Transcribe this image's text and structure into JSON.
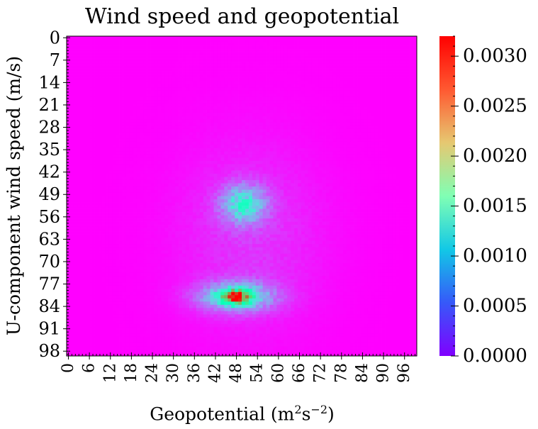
{
  "chart_data": {
    "type": "heatmap",
    "title": "Wind speed and geopotential",
    "xlabel": "Geopotential (m²s⁻²)",
    "ylabel": "U-component wind speed (m/s)",
    "x_ticks": [
      "0",
      "6",
      "12",
      "18",
      "24",
      "30",
      "36",
      "42",
      "48",
      "54",
      "60",
      "66",
      "72",
      "78",
      "84",
      "90",
      "96"
    ],
    "y_ticks": [
      "0",
      "7",
      "14",
      "21",
      "28",
      "35",
      "42",
      "49",
      "56",
      "63",
      "70",
      "77",
      "84",
      "91",
      "98"
    ],
    "grid_shape": [
      100,
      100
    ],
    "x_range": [
      0,
      99
    ],
    "y_range": [
      0,
      99
    ],
    "y_inverted": true,
    "colormap": "rainbow",
    "colorbar": {
      "range": [
        0.0,
        0.0032
      ],
      "ticks": [
        "0.0000",
        "0.0005",
        "0.0010",
        "0.0015",
        "0.0020",
        "0.0025",
        "0.0030"
      ]
    },
    "density_regions": [
      {
        "name": "upper cluster",
        "x_center": 50,
        "y_center": 52,
        "peak": 0.0013
      },
      {
        "name": "lower cluster",
        "x_center": 48,
        "y_center": 81,
        "peak": 0.0032
      }
    ],
    "grid": false
  }
}
